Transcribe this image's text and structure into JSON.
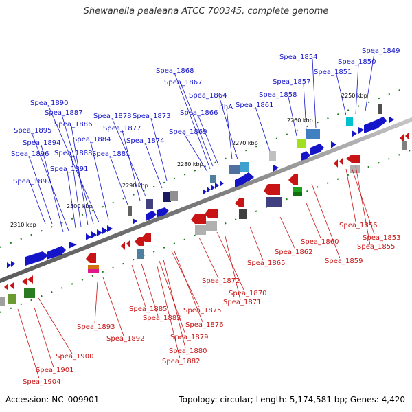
{
  "title": "Shewanella pealeana ATCC 700345, complete genome",
  "footer": {
    "accession": "Accession: NC_009901",
    "summary": "Topology: circular; Length: 5,174,581 bp; Genes: 4,420"
  },
  "ticks": [
    "2310 kbp",
    "2300 kbp",
    "2290 kbp",
    "2280 kbp",
    "2270 kbp",
    "2260 kbp",
    "2250 kbp"
  ],
  "genes_top": [
    "Spea_1849",
    "Spea_1850",
    "Spea_1851",
    "Spea_1854",
    "Spea_1857",
    "Spea_1858",
    "Spea_1861",
    "Spea_1864",
    "rihA",
    "Spea_1866",
    "Spea_1867",
    "Spea_1868",
    "Spea_1869",
    "Spea_1873",
    "Spea_1874",
    "Spea_1878",
    "Spea_1877",
    "Spea_1881",
    "Spea_1884",
    "Spea_1890",
    "Spea_1887",
    "Spea_1886",
    "Spea_1895",
    "Spea_1894",
    "Spea_1896",
    "Spea_1888",
    "Spea_1891",
    "Spea_1897"
  ],
  "genes_bottom": [
    "Spea_1856",
    "Spea_1853",
    "Spea_1855",
    "Spea_1859",
    "Spea_1860",
    "Spea_1862",
    "Spea_1865",
    "Spea_1872",
    "Spea_1870",
    "Spea_1871",
    "Spea_1875",
    "Spea_1876",
    "Spea_1885",
    "Spea_1883",
    "Spea_1879",
    "Spea_1880",
    "Spea_1882",
    "Spea_1893",
    "Spea_1892",
    "Spea_1900",
    "Spea_1901",
    "Spea_1904"
  ],
  "colors": {
    "forward": "#1414c8",
    "reverse": "#c81414",
    "backbone": "#808080",
    "tick": "#1a7a1a"
  }
}
